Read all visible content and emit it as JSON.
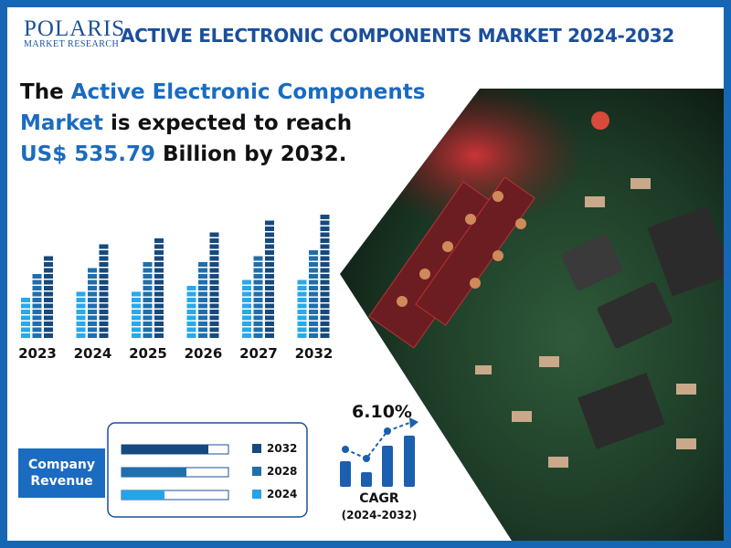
{
  "header": {
    "logo": "POLARIS",
    "logo_subtitle": "MARKET RESEARCH",
    "title": "ACTIVE ELECTRONIC COMPONENTS MARKET 2024-2032"
  },
  "headline": [
    [
      {
        "text": "The",
        "highlight": false
      },
      {
        "text": "Active Electronic Components",
        "highlight": true
      }
    ],
    [
      {
        "text": "Market",
        "highlight": true
      },
      {
        "text": "is expected to reach",
        "highlight": false
      }
    ],
    [
      {
        "text": "US$ 535.79",
        "highlight": true
      },
      {
        "text": "Billion by 2032.",
        "highlight": false
      }
    ]
  ],
  "years": [
    "2023",
    "2024",
    "2025",
    "2026",
    "2027",
    "2032"
  ],
  "company_revenue": {
    "label": "Company Revenue",
    "legend": [
      "2032",
      "2028",
      "2024"
    ]
  },
  "cagr": {
    "value": "6.10%",
    "label": "CAGR",
    "period": "(2024-2032)"
  }
}
